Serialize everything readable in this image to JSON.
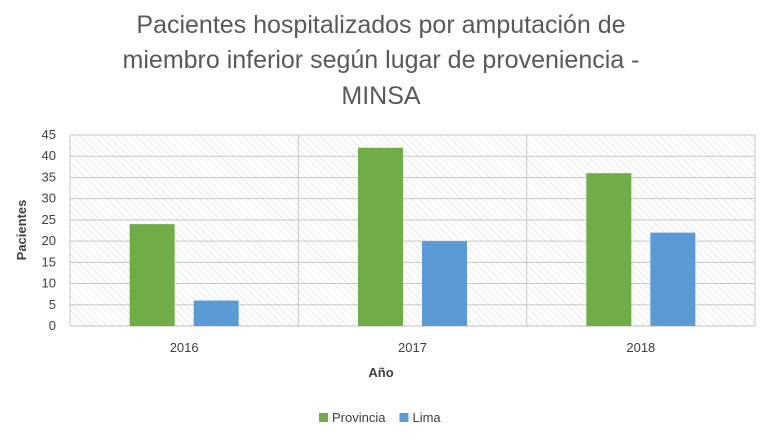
{
  "chart_data": {
    "type": "bar",
    "title_lines": [
      "Pacientes hospitalizados por amputación de",
      "miembro inferior según lugar de proveniencia -",
      "MINSA"
    ],
    "xlabel": "Año",
    "ylabel": "Pacientes",
    "categories": [
      "2016",
      "2017",
      "2018"
    ],
    "series": [
      {
        "name": "Provincia",
        "values": [
          24,
          42,
          36
        ],
        "color": "#70ad47"
      },
      {
        "name": "Lima",
        "values": [
          6,
          20,
          22
        ],
        "color": "#5b9bd5"
      }
    ],
    "ylim": [
      0,
      45
    ],
    "yticks": [
      0,
      5,
      10,
      15,
      20,
      25,
      30,
      35,
      40,
      45
    ],
    "grid": true,
    "legend_position": "bottom"
  }
}
